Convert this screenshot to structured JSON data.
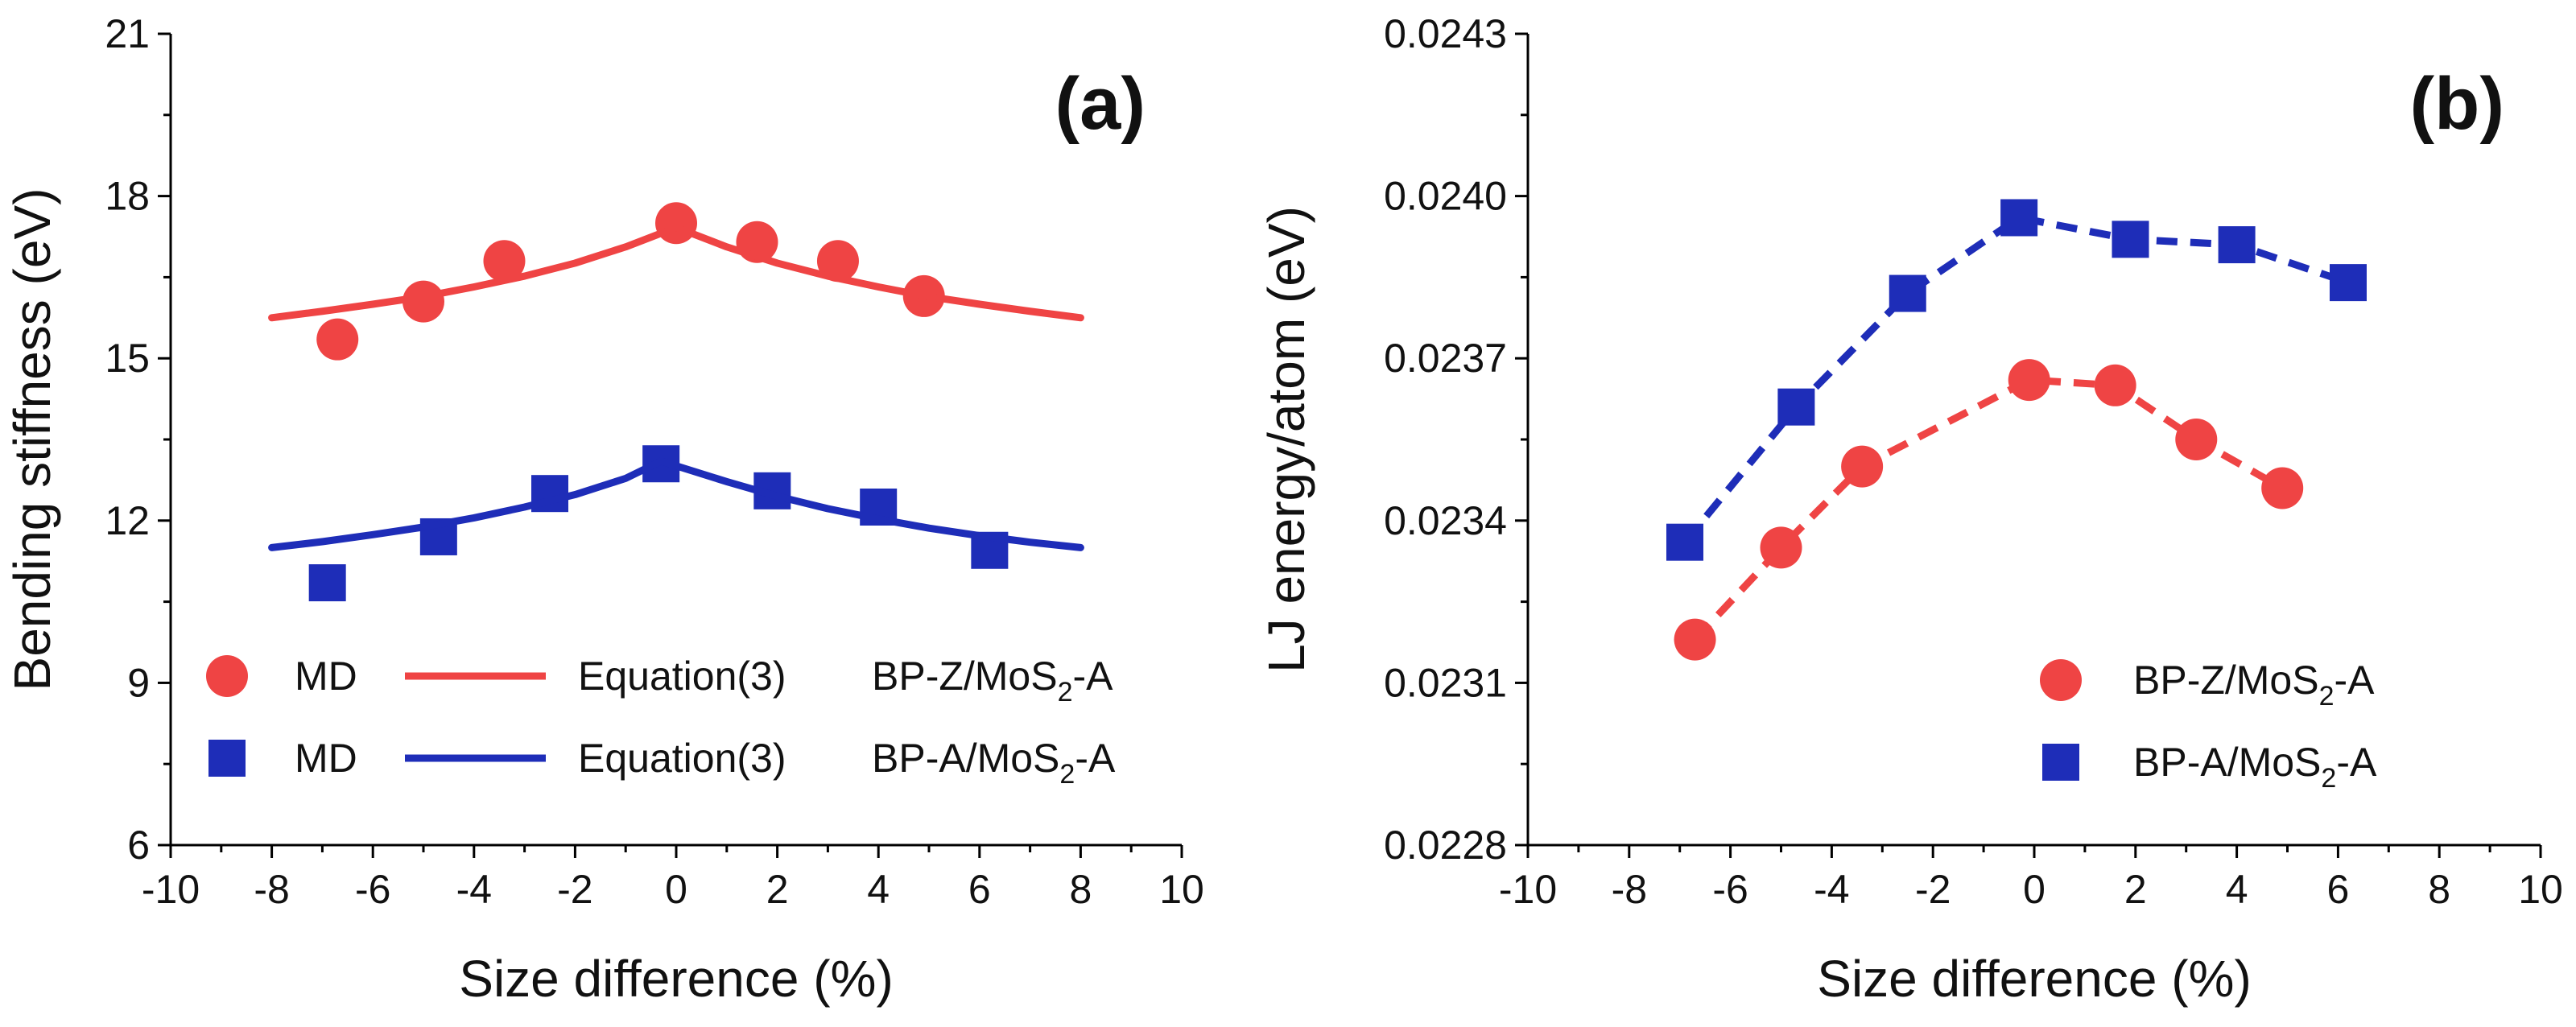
{
  "chart_data": [
    {
      "type": "scatter",
      "panel_label": "(a)",
      "xlabel": "Size difference (%)",
      "ylabel": "Bending stiffness (eV)",
      "xlim": [
        -10,
        10
      ],
      "ylim": [
        6,
        21
      ],
      "xticks": [
        -10,
        -8,
        -6,
        -4,
        -2,
        0,
        2,
        4,
        6,
        8,
        10
      ],
      "yticks": [
        6,
        9,
        12,
        15,
        18,
        21
      ],
      "xtick_labels": [
        "-10",
        "-8",
        "-6",
        "-4",
        "-2",
        "0",
        "2",
        "4",
        "6",
        "8",
        "10"
      ],
      "ytick_labels": [
        "6",
        "9",
        "12",
        "15",
        "18",
        "21"
      ],
      "legend_position": "bottom-left",
      "series": [
        {
          "name": "MD",
          "group": "BP-Z/MoS2-A",
          "kind": "markers",
          "marker": "circle",
          "color": "#ef4444",
          "x": [
            -6.7,
            -5.0,
            -3.4,
            0.0,
            1.6,
            3.2,
            4.9
          ],
          "y": [
            15.35,
            16.05,
            16.8,
            17.5,
            17.15,
            16.8,
            16.15
          ]
        },
        {
          "name": "Equation(3)",
          "group": "BP-Z/MoS2-A",
          "kind": "line",
          "color": "#ef4444",
          "x": [
            -8,
            -7,
            -6,
            -5,
            -4,
            -3,
            -2,
            -1,
            0,
            1,
            2,
            3,
            4,
            5,
            6,
            7,
            8
          ],
          "y": [
            15.75,
            15.87,
            16.0,
            16.14,
            16.32,
            16.52,
            16.76,
            17.06,
            17.42,
            17.06,
            16.76,
            16.52,
            16.32,
            16.14,
            16.0,
            15.87,
            15.75
          ]
        },
        {
          "name": "MD",
          "group": "BP-A/MoS2-A",
          "kind": "markers",
          "marker": "square",
          "color": "#1e2db8",
          "x": [
            -6.9,
            -4.7,
            -2.5,
            -0.3,
            1.9,
            4.0,
            6.2
          ],
          "y": [
            10.85,
            11.7,
            12.5,
            13.05,
            12.55,
            12.25,
            11.45
          ]
        },
        {
          "name": "Equation(3)",
          "group": "BP-A/MoS2-A",
          "kind": "line",
          "color": "#1e2db8",
          "x": [
            -8,
            -7,
            -6,
            -5,
            -4,
            -3,
            -2,
            -1,
            -0.3,
            1,
            2,
            3,
            4,
            5,
            6,
            7,
            8
          ],
          "y": [
            11.5,
            11.61,
            11.74,
            11.88,
            12.05,
            12.25,
            12.48,
            12.78,
            13.1,
            12.72,
            12.45,
            12.22,
            12.03,
            11.86,
            11.72,
            11.6,
            11.5
          ]
        }
      ],
      "legend": [
        {
          "marker_label": "MD",
          "line_label": "Equation(3)",
          "group_label": "BP-Z/MoS",
          "group_sub": "2",
          "group_suffix": "-A",
          "color": "#ef4444",
          "marker": "circle"
        },
        {
          "marker_label": "MD",
          "line_label": "Equation(3)",
          "group_label": "BP-A/MoS",
          "group_sub": "2",
          "group_suffix": "-A",
          "color": "#1e2db8",
          "marker": "square"
        }
      ]
    },
    {
      "type": "scatter",
      "panel_label": "(b)",
      "xlabel": "Size difference (%)",
      "ylabel": "LJ energy/atom (eV)",
      "xlim": [
        -10,
        10
      ],
      "ylim": [
        0.0228,
        0.0243
      ],
      "xticks": [
        -10,
        -8,
        -6,
        -4,
        -2,
        0,
        2,
        4,
        6,
        8,
        10
      ],
      "yticks": [
        0.0228,
        0.0231,
        0.0234,
        0.0237,
        0.024,
        0.0243
      ],
      "xtick_labels": [
        "-10",
        "-8",
        "-6",
        "-4",
        "-2",
        "0",
        "2",
        "4",
        "6",
        "8",
        "10"
      ],
      "ytick_labels": [
        "0.0228",
        "0.0231",
        "0.0234",
        "0.0237",
        "0.0240",
        "0.0243"
      ],
      "legend_position": "bottom-right",
      "series": [
        {
          "name": "BP-Z/MoS2-A",
          "kind": "markers+dashed",
          "marker": "circle",
          "color": "#ef4444",
          "x": [
            -6.7,
            -5.0,
            -3.4,
            -0.1,
            1.6,
            3.2,
            4.9
          ],
          "y": [
            0.02318,
            0.02335,
            0.0235,
            0.02366,
            0.02365,
            0.02355,
            0.02346
          ]
        },
        {
          "name": "BP-A/MoS2-A",
          "kind": "markers+dashed",
          "marker": "square",
          "color": "#1e2db8",
          "x": [
            -6.9,
            -4.7,
            -2.5,
            -0.3,
            1.9,
            4.0,
            6.2
          ],
          "y": [
            0.02336,
            0.02361,
            0.02382,
            0.02396,
            0.02392,
            0.02391,
            0.02384
          ]
        }
      ],
      "legend": [
        {
          "group_label": "BP-Z/MoS",
          "group_sub": "2",
          "group_suffix": "-A",
          "color": "#ef4444",
          "marker": "circle"
        },
        {
          "group_label": "BP-A/MoS",
          "group_sub": "2",
          "group_suffix": "-A",
          "color": "#1e2db8",
          "marker": "square"
        }
      ]
    }
  ]
}
